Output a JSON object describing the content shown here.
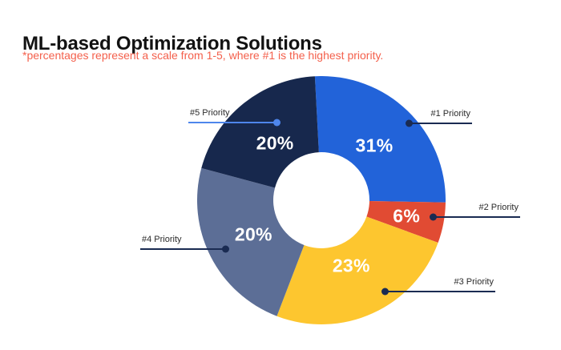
{
  "header": {
    "title": "ML-based Optimization Solutions",
    "subtitle": "*percentages represent a scale from 1-5, where #1 is the highest priority."
  },
  "colors": {
    "background": "#FFFFFF",
    "title_text": "#121212",
    "subtitle_text": "#F4604C",
    "callout_line": "#1A2B52",
    "callout_line_alt": "#4E86EC",
    "callout_text": "#2B2B2B",
    "percent_text": "#FFFFFF"
  },
  "chart_data": {
    "type": "pie",
    "subtype": "donut",
    "title": "ML-based Optimization Solutions",
    "unit": "percent",
    "categories": [
      "#1 Priority",
      "#2 Priority",
      "#3 Priority",
      "#4 Priority",
      "#5 Priority"
    ],
    "values": [
      31,
      6,
      23,
      20,
      20
    ],
    "legend_position": "outside-callouts",
    "geometry": {
      "outer_radius": 155,
      "inner_radius": 60
    },
    "segments": [
      {
        "label": "#1 Priority",
        "value": 31,
        "display": "31%",
        "color": "#2263D9",
        "start_deg": -3,
        "end_deg": 91,
        "label_r": 95
      },
      {
        "label": "#2 Priority",
        "value": 6,
        "display": "6%",
        "color": "#E14B33",
        "start_deg": 91,
        "end_deg": 110,
        "label_r": 108
      },
      {
        "label": "#3 Priority",
        "value": 23,
        "display": "23%",
        "color": "#FDC62F",
        "start_deg": 110,
        "end_deg": 201,
        "label_r": 90
      },
      {
        "label": "#4 Priority",
        "value": 20,
        "display": "20%",
        "color": "#5C6E96",
        "start_deg": 201,
        "end_deg": 285,
        "label_r": 95
      },
      {
        "label": "#5 Priority",
        "value": 20,
        "display": "20%",
        "color": "#17284D",
        "start_deg": 285,
        "end_deg": 357,
        "label_r": 92
      }
    ]
  }
}
